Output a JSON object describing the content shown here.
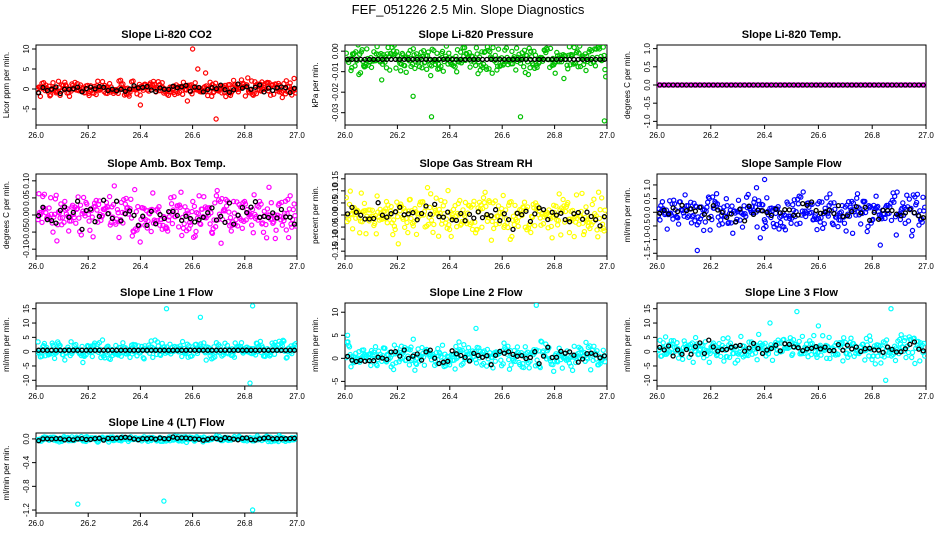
{
  "title": "FEF_051226  2.5 Min. Slope Diagnostics",
  "chart_data": [
    {
      "type": "scatter",
      "title": "Slope Li-820 CO2",
      "ylabel": "Licor ppm per min.",
      "xlim": [
        26.0,
        27.0
      ],
      "ylim": [
        -9,
        11
      ],
      "xticks": [
        "26.0",
        "26.2",
        "26.4",
        "26.6",
        "26.8",
        "27.0"
      ],
      "yticks": [
        {
          "v": -5,
          "label": "-5"
        },
        {
          "v": 0,
          "label": "0"
        },
        {
          "v": 5,
          "label": "5"
        },
        {
          "v": 10,
          "label": "10"
        }
      ],
      "color": "#ff0000",
      "spread": 1.3,
      "base": 0.1,
      "outliers": [
        [
          26.4,
          -4
        ],
        [
          26.6,
          10
        ],
        [
          26.62,
          5
        ],
        [
          26.69,
          -7.5
        ],
        [
          26.65,
          4
        ],
        [
          26.58,
          -3
        ]
      ],
      "black": "scatter"
    },
    {
      "type": "scatter",
      "title": "Slope Li-820 Pressure",
      "ylabel": "kPa per min.",
      "xlim": [
        26.0,
        27.0
      ],
      "ylim": [
        -0.036,
        0.003
      ],
      "xticks": [
        "26.0",
        "26.2",
        "26.4",
        "26.6",
        "26.8",
        "27.0"
      ],
      "yticks": [
        {
          "v": -0.03,
          "label": "-0.03"
        },
        {
          "v": -0.02,
          "label": "-0.02"
        },
        {
          "v": -0.01,
          "label": "-0.01"
        },
        {
          "v": 0.0,
          "label": "0.00"
        }
      ],
      "color": "#00c000",
      "spread": 0.0045,
      "base": -0.004,
      "outliers": [
        [
          26.33,
          -0.032
        ],
        [
          26.67,
          -0.032
        ],
        [
          26.99,
          -0.034
        ],
        [
          26.26,
          -0.022
        ],
        [
          26.14,
          -0.014
        ]
      ],
      "black": "flat"
    },
    {
      "type": "scatter",
      "title": "Slope Li-820 Temp.",
      "ylabel": "degrees C per min.",
      "xlim": [
        26.0,
        27.0
      ],
      "ylim": [
        -1.1,
        1.1
      ],
      "xticks": [
        "26.0",
        "26.2",
        "26.4",
        "26.6",
        "26.8",
        "27.0"
      ],
      "yticks": [
        {
          "v": -1.0,
          "label": "-1.0"
        },
        {
          "v": -0.5,
          "label": "-0.5"
        },
        {
          "v": 0.0,
          "label": "0.0"
        },
        {
          "v": 0.5,
          "label": "0.5"
        },
        {
          "v": 1.0,
          "label": "1.0"
        }
      ],
      "color": "#ff00ff",
      "spread": 0.0,
      "base": 0.0,
      "outliers": [],
      "black": "flat"
    },
    {
      "type": "scatter",
      "title": "Slope Amb. Box Temp.",
      "ylabel": "degrees C per min.",
      "xlim": [
        26.0,
        27.0
      ],
      "ylim": [
        -0.12,
        0.12
      ],
      "xticks": [
        "26.0",
        "26.2",
        "26.4",
        "26.6",
        "26.8",
        "27.0"
      ],
      "yticks": [
        {
          "v": -0.1,
          "label": "-0.10"
        },
        {
          "v": -0.05,
          "label": "-0.05"
        },
        {
          "v": 0.0,
          "label": "0.00"
        },
        {
          "v": 0.05,
          "label": "0.05"
        },
        {
          "v": 0.1,
          "label": "0.10"
        }
      ],
      "color": "#ff00ff",
      "spread": 0.045,
      "base": 0.0,
      "outliers": [],
      "black": "scatter"
    },
    {
      "type": "scatter",
      "title": "Slope Gas Stream RH",
      "ylabel": "percent per min.",
      "xlim": [
        26.0,
        27.0
      ],
      "ylim": [
        -0.17,
        0.17
      ],
      "xticks": [
        "26.0",
        "26.2",
        "26.4",
        "26.6",
        "26.8",
        "27.0"
      ],
      "yticks": [
        {
          "v": -0.15,
          "label": "-0.15"
        },
        {
          "v": -0.1,
          "label": "-0.10"
        },
        {
          "v": -0.05,
          "label": "-0.05"
        },
        {
          "v": 0.0,
          "label": "0.00"
        },
        {
          "v": 0.05,
          "label": "0.05"
        },
        {
          "v": 0.1,
          "label": "0.10"
        },
        {
          "v": 0.15,
          "label": "0.15"
        }
      ],
      "color": "#ffff00",
      "spread": 0.055,
      "base": 0.0,
      "outliers": [],
      "black": "scatter"
    },
    {
      "type": "scatter",
      "title": "Slope Sample Flow",
      "ylabel": "ml/min per min.",
      "xlim": [
        26.0,
        27.0
      ],
      "ylim": [
        -1.6,
        1.4
      ],
      "xticks": [
        "26.0",
        "26.2",
        "26.4",
        "26.6",
        "26.8",
        "27.0"
      ],
      "yticks": [
        {
          "v": -1.5,
          "label": "-1.5"
        },
        {
          "v": -1.0,
          "label": "-1.0"
        },
        {
          "v": -0.5,
          "label": "-0.5"
        },
        {
          "v": 0.0,
          "label": "0.0"
        },
        {
          "v": 0.5,
          "label": "0.5"
        },
        {
          "v": 1.0,
          "label": "1.0"
        }
      ],
      "color": "#0000ff",
      "spread": 0.45,
      "base": 0.0,
      "outliers": [
        [
          26.4,
          1.2
        ],
        [
          26.37,
          0.9
        ],
        [
          26.15,
          -1.4
        ],
        [
          26.83,
          -1.2
        ]
      ],
      "black": "scatter"
    },
    {
      "type": "scatter",
      "title": "Slope Line 1 Flow",
      "ylabel": "ml/min per min.",
      "xlim": [
        26.0,
        27.0
      ],
      "ylim": [
        -12,
        17
      ],
      "xticks": [
        "26.0",
        "26.2",
        "26.4",
        "26.6",
        "26.8",
        "27.0"
      ],
      "yticks": [
        {
          "v": -10,
          "label": "-10"
        },
        {
          "v": -5,
          "label": "-5"
        },
        {
          "v": 0,
          "label": "0"
        },
        {
          "v": 5,
          "label": "5"
        },
        {
          "v": 10,
          "label": "10"
        },
        {
          "v": 15,
          "label": "15"
        }
      ],
      "color": "#00ffff",
      "spread": 2.0,
      "base": 0.5,
      "outliers": [
        [
          26.5,
          15
        ],
        [
          26.83,
          16
        ],
        [
          26.82,
          -11
        ],
        [
          26.63,
          12
        ]
      ],
      "black": "flat"
    },
    {
      "type": "scatter",
      "title": "Slope Line 2 Flow",
      "ylabel": "ml/min per min.",
      "xlim": [
        26.0,
        27.0
      ],
      "ylim": [
        -6,
        12
      ],
      "xticks": [
        "26.0",
        "26.2",
        "26.4",
        "26.6",
        "26.8",
        "27.0"
      ],
      "yticks": [
        {
          "v": -5,
          "label": "-5"
        },
        {
          "v": 0,
          "label": "0"
        },
        {
          "v": 5,
          "label": "5"
        },
        {
          "v": 10,
          "label": "10"
        }
      ],
      "color": "#00ffff",
      "spread": 1.8,
      "base": 0.5,
      "outliers": [
        [
          26.73,
          11.5
        ],
        [
          26.01,
          5
        ],
        [
          26.5,
          6.5
        ]
      ],
      "black": "scatter"
    },
    {
      "type": "scatter",
      "title": "Slope Line 3 Flow",
      "ylabel": "ml/min per min.",
      "xlim": [
        26.0,
        27.0
      ],
      "ylim": [
        -12,
        17
      ],
      "xticks": [
        "26.0",
        "26.2",
        "26.4",
        "26.6",
        "26.8",
        "27.0"
      ],
      "yticks": [
        {
          "v": -10,
          "label": "-10"
        },
        {
          "v": -5,
          "label": "-5"
        },
        {
          "v": 0,
          "label": "0"
        },
        {
          "v": 5,
          "label": "5"
        },
        {
          "v": 10,
          "label": "10"
        },
        {
          "v": 15,
          "label": "15"
        }
      ],
      "color": "#00ffff",
      "spread": 2.8,
      "base": 1.0,
      "outliers": [
        [
          26.85,
          -10
        ],
        [
          26.42,
          10
        ],
        [
          26.6,
          9
        ],
        [
          26.87,
          15
        ],
        [
          26.52,
          14
        ]
      ],
      "black": "scatter"
    },
    {
      "type": "scatter",
      "title": "Slope Line 4 (LT) Flow",
      "ylabel": "ml/min per min.",
      "xlim": [
        26.0,
        27.0
      ],
      "ylim": [
        -1.25,
        0.1
      ],
      "xticks": [
        "26.0",
        "26.2",
        "26.4",
        "26.6",
        "26.8",
        "27.0"
      ],
      "yticks": [
        {
          "v": -1.2,
          "label": "-1.2"
        },
        {
          "v": -0.8,
          "label": "-0.8"
        },
        {
          "v": -0.4,
          "label": "-0.4"
        },
        {
          "v": 0.0,
          "label": "0.0"
        }
      ],
      "color": "#00ffff",
      "spread": 0.03,
      "base": 0.0,
      "outliers": [
        [
          26.16,
          -1.1
        ],
        [
          26.49,
          -1.05
        ],
        [
          26.83,
          -1.2
        ]
      ],
      "black": "scatter"
    }
  ]
}
